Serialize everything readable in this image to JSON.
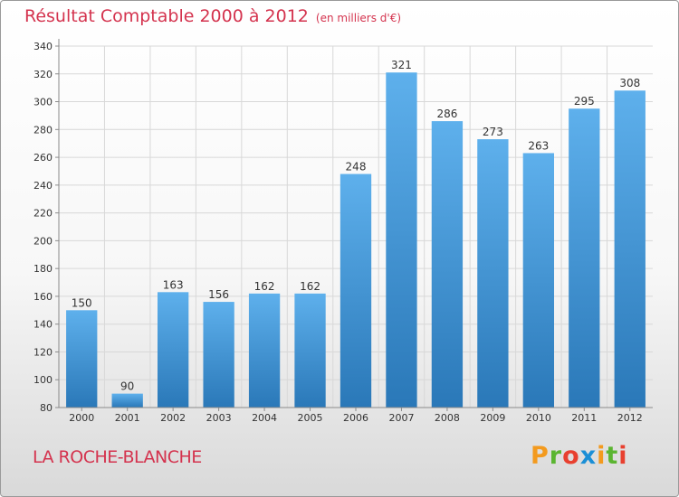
{
  "header": {
    "title": "Résultat Comptable 2000 à 2012",
    "subtitle": "(en milliers d'€)"
  },
  "footer": {
    "town": "LA ROCHE-BLANCHE",
    "logo_letters": [
      "P",
      "r",
      "o",
      "x",
      "i",
      "t",
      "i"
    ],
    "logo_colors": [
      "#f39a1e",
      "#5bb531",
      "#e8402f",
      "#1b8fd6",
      "#f39a1e",
      "#5bb531",
      "#e8402f"
    ]
  },
  "chart_data": {
    "type": "bar",
    "title": "Résultat Comptable 2000 à 2012",
    "subtitle": "(en milliers d'€)",
    "xlabel": "",
    "ylabel": "",
    "categories": [
      "2000",
      "2001",
      "2002",
      "2003",
      "2004",
      "2005",
      "2006",
      "2007",
      "2008",
      "2009",
      "2010",
      "2011",
      "2012"
    ],
    "values": [
      150,
      90,
      163,
      156,
      162,
      162,
      248,
      321,
      286,
      273,
      263,
      295,
      308
    ],
    "ylim": [
      80,
      340
    ],
    "yticks": [
      80,
      100,
      120,
      140,
      160,
      180,
      200,
      220,
      240,
      260,
      280,
      300,
      320,
      340
    ],
    "grid": true,
    "colors": {
      "bar_top": "#5eb0ec",
      "bar_bottom": "#2a78b8",
      "grid": "#d8d8d8",
      "axis": "#8a8a8a"
    }
  }
}
